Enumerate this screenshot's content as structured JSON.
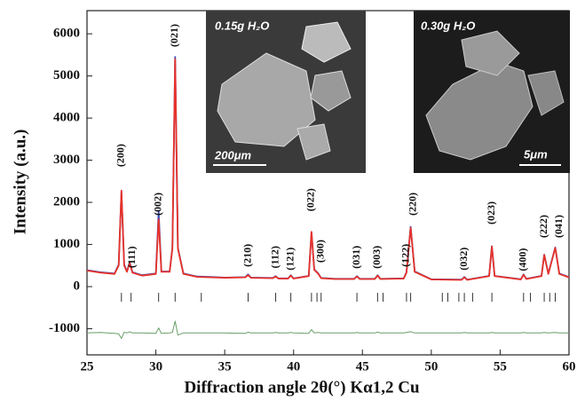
{
  "chart_data": {
    "type": "line",
    "x_label": "Diffraction angle 2θ(°) Kα1,2 Cu",
    "y_label": "Intensity (a.u.)",
    "xlim": [
      25,
      60
    ],
    "ylim": [
      -1620,
      6550
    ],
    "xticks": [
      25,
      30,
      35,
      40,
      45,
      50,
      55,
      60
    ],
    "yticks": [
      -1000,
      0,
      1000,
      2000,
      3000,
      4000,
      5000,
      6000
    ],
    "x": [
      25,
      26,
      27,
      27.3,
      27.5,
      27.7,
      27.9,
      28.1,
      28.3,
      29,
      30,
      30.2,
      30.4,
      31,
      31.2,
      31.4,
      31.6,
      32,
      33,
      34,
      35,
      36.5,
      36.7,
      36.9,
      38.5,
      38.7,
      38.9,
      39.6,
      39.8,
      40,
      41.1,
      41.3,
      41.5,
      41.8,
      42,
      43,
      44.4,
      44.6,
      44.8,
      45.9,
      46.1,
      46.3,
      48,
      48.2,
      48.5,
      48.8,
      50,
      52.2,
      52.4,
      52.6,
      54.2,
      54.4,
      54.6,
      56.5,
      56.7,
      56.9,
      58,
      58.2,
      58.5,
      59,
      59.3,
      60
    ],
    "series": [
      {
        "color": "#3b4fb8",
        "values": [
          390,
          340,
          310,
          520,
          2250,
          520,
          360,
          580,
          340,
          270,
          310,
          1780,
          360,
          360,
          920,
          5450,
          920,
          310,
          240,
          230,
          215,
          225,
          290,
          215,
          205,
          250,
          195,
          195,
          270,
          195,
          255,
          1290,
          410,
          310,
          205,
          185,
          185,
          250,
          185,
          185,
          270,
          185,
          195,
          340,
          1420,
          360,
          175,
          165,
          230,
          165,
          255,
          960,
          255,
          175,
          290,
          185,
          255,
          760,
          310,
          930,
          310,
          225
        ]
      },
      {
        "color": "#e8322a",
        "values": [
          380,
          330,
          300,
          500,
          2280,
          500,
          350,
          560,
          330,
          260,
          300,
          1600,
          350,
          350,
          900,
          5400,
          900,
          300,
          230,
          220,
          210,
          220,
          270,
          210,
          200,
          240,
          190,
          190,
          260,
          190,
          250,
          1300,
          400,
          300,
          200,
          180,
          180,
          240,
          180,
          180,
          260,
          180,
          190,
          330,
          1400,
          350,
          170,
          160,
          220,
          160,
          250,
          950,
          250,
          170,
          280,
          180,
          250,
          750,
          300,
          920,
          300,
          220
        ]
      },
      {
        "color": "#6a9e6a",
        "values": [
          -1100,
          -1090,
          -1110,
          -1120,
          -1230,
          -1080,
          -1100,
          -1070,
          -1100,
          -1100,
          -1110,
          -980,
          -1110,
          -1100,
          -1090,
          -820,
          -1150,
          -1100,
          -1100,
          -1100,
          -1100,
          -1110,
          -1080,
          -1100,
          -1100,
          -1090,
          -1100,
          -1100,
          -1090,
          -1100,
          -1110,
          -1020,
          -1100,
          -1090,
          -1100,
          -1100,
          -1100,
          -1090,
          -1100,
          -1100,
          -1080,
          -1100,
          -1100,
          -1090,
          -1070,
          -1100,
          -1100,
          -1100,
          -1090,
          -1100,
          -1100,
          -1090,
          -1100,
          -1100,
          -1090,
          -1100,
          -1100,
          -1090,
          -1100,
          -1090,
          -1100,
          -1100
        ]
      }
    ],
    "reflections": [
      27.5,
      28.2,
      30.2,
      31.4,
      33.3,
      36.7,
      38.7,
      39.8,
      41.3,
      41.7,
      42.0,
      44.6,
      46.1,
      46.5,
      48.2,
      48.5,
      50.8,
      51.2,
      52.0,
      52.4,
      53.0,
      54.4,
      56.7,
      57.2,
      58.2,
      58.6,
      59.0
    ],
    "peak_labels": [
      "(200)",
      "(111)",
      "(002)",
      "(021)",
      "(210)",
      "(112)",
      "(121)",
      "(022)",
      "(300)",
      "(031)",
      "(003)",
      "(122)",
      "(220)",
      "(032)",
      "(023)",
      "(400)",
      "(222)",
      "(041)"
    ],
    "insets": [
      {
        "title": "0.15g H₂O",
        "scale": "200μm"
      },
      {
        "title": "0.30g H₂O",
        "scale": "5μm"
      }
    ]
  }
}
